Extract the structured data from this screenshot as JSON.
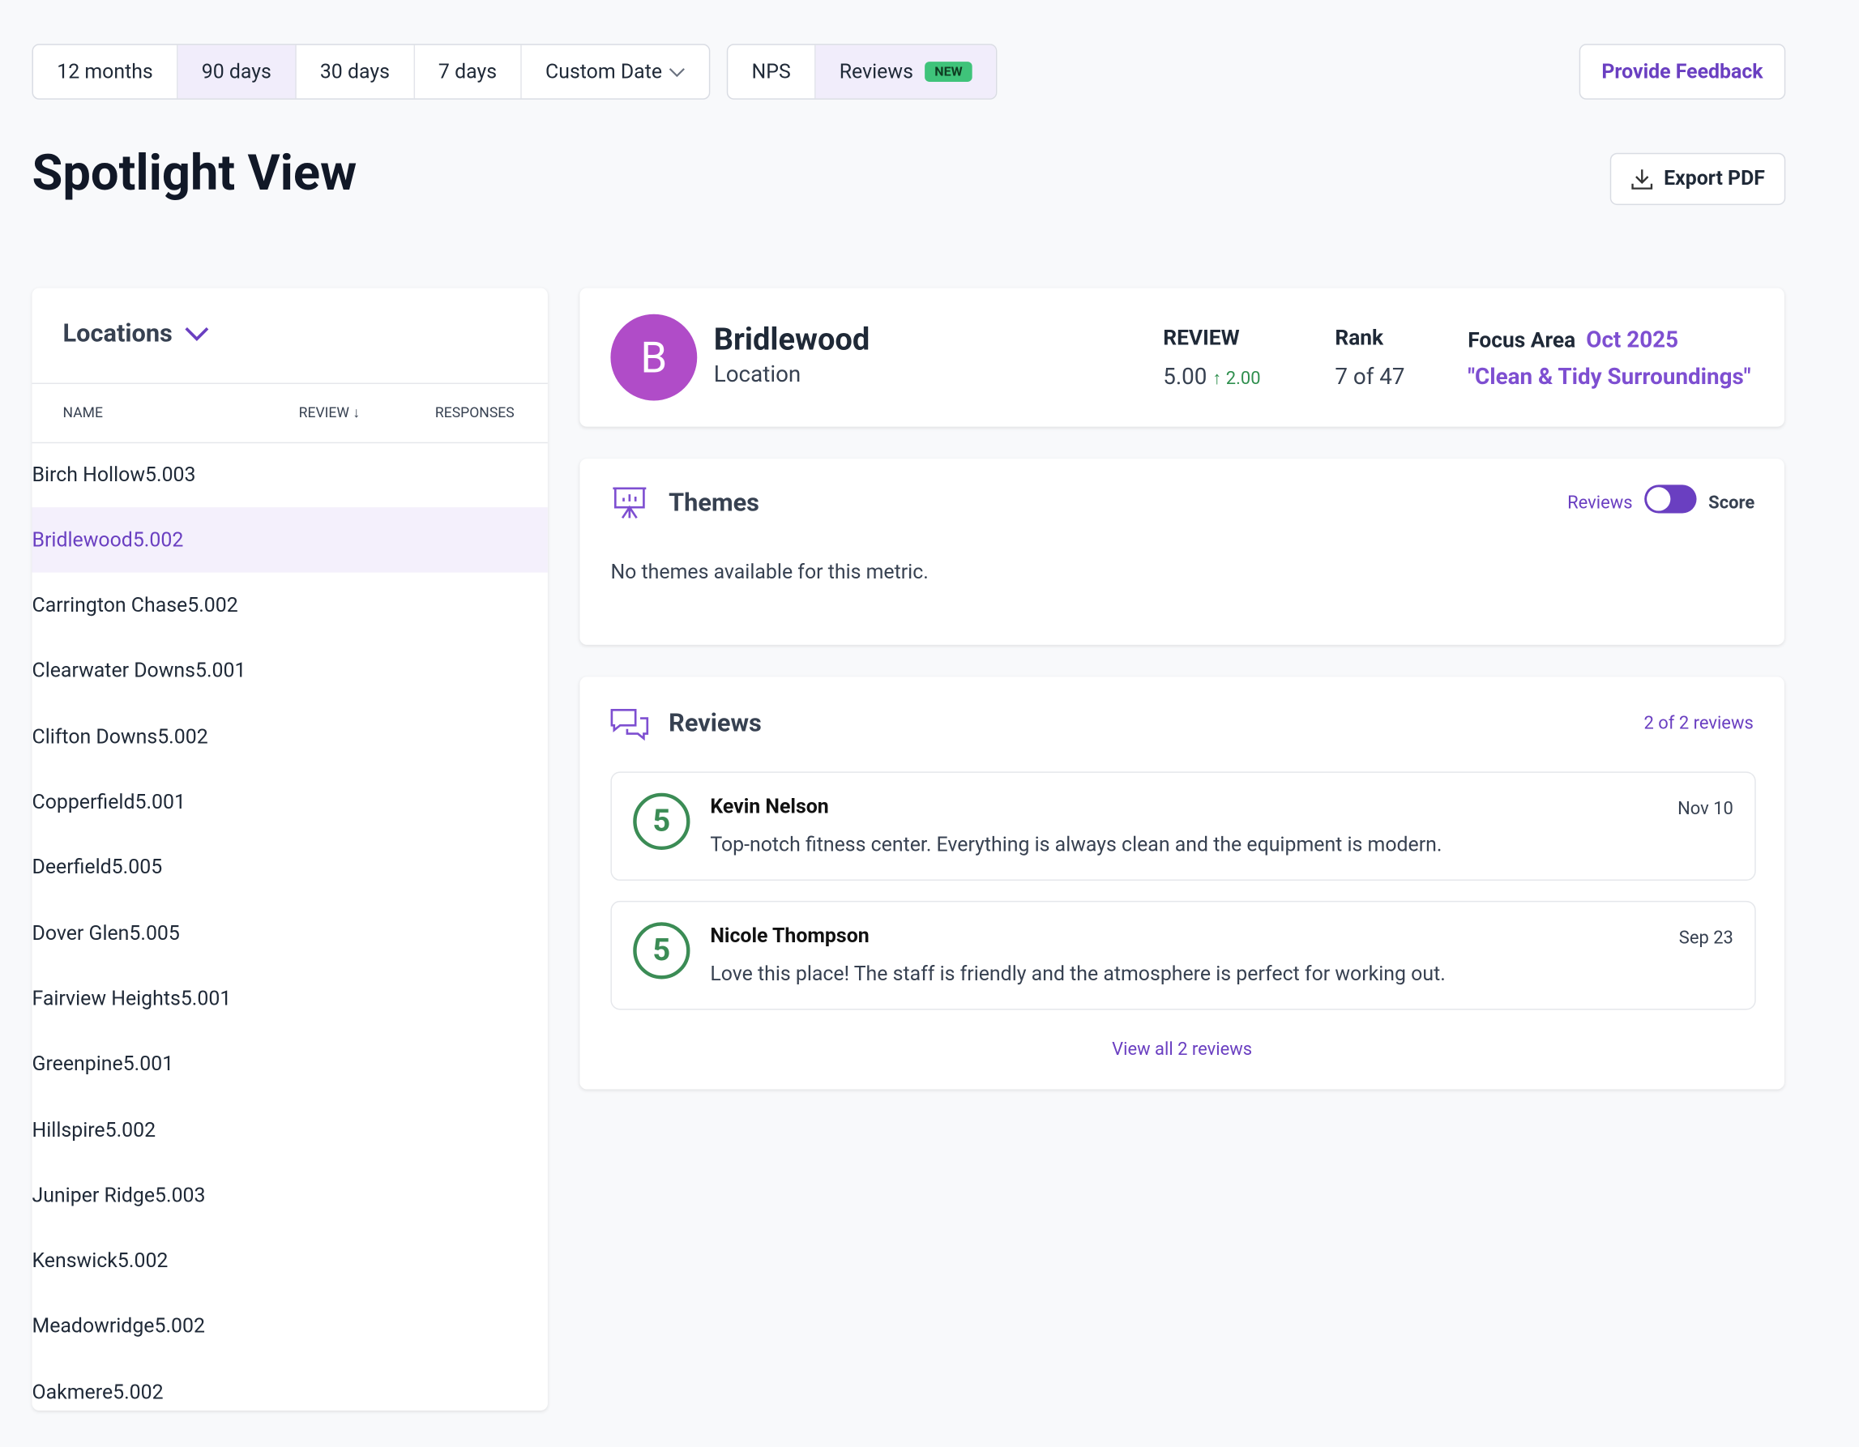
{
  "filters": [
    "12 months",
    "90 days",
    "30 days",
    "7 days",
    "Custom Date"
  ],
  "views": [
    "NPS",
    "Reviews"
  ],
  "new_badge": "NEW",
  "feedback_button": "Provide Feedback",
  "page_title": "Spotlight View",
  "export_button": "Export PDF",
  "locations": {
    "title": "Locations",
    "columns": [
      "NAME",
      "REVIEW",
      "RESPONSES"
    ],
    "rows": [
      [
        "Birch Hollow",
        "5.00",
        3
      ],
      [
        "Bridlewood",
        "5.00",
        2
      ],
      [
        "Carrington Chase",
        "5.00",
        2
      ],
      [
        "Clearwater Downs",
        "5.00",
        1
      ],
      [
        "Clifton Downs",
        "5.00",
        2
      ],
      [
        "Copperfield",
        "5.00",
        1
      ],
      [
        "Deerfield",
        "5.00",
        5
      ],
      [
        "Dover Glen",
        "5.00",
        5
      ],
      [
        "Fairview Heights",
        "5.00",
        1
      ],
      [
        "Greenpine",
        "5.00",
        1
      ],
      [
        "Hillspire",
        "5.00",
        2
      ],
      [
        "Juniper Ridge",
        "5.00",
        3
      ],
      [
        "Kenswick",
        "5.00",
        2
      ],
      [
        "Meadowridge",
        "5.00",
        2
      ],
      [
        "Oakmere",
        "5.00",
        2
      ]
    ]
  },
  "summary": {
    "initial": "B",
    "name": "Bridlewood",
    "subtitle": "Location",
    "review_label": "REVIEW",
    "review": "5.00",
    "change": "2.00",
    "rank_label": "Rank",
    "rank": "7 of 47",
    "focus_label": "Focus Area",
    "focus_date": "Oct 2025",
    "focus_text": "\"Clean & Tidy Surroundings\""
  },
  "themes": {
    "title": "Themes",
    "toggle_left": "Reviews",
    "toggle_right": "Score",
    "empty": "No themes available for this metric."
  },
  "reviews": {
    "title": "Reviews",
    "count": "2 of 2 reviews",
    "items": [
      {
        "score": 5,
        "author": "Kevin Nelson",
        "date": "Nov 10",
        "text": "Top-notch fitness center. Everything is always clean and the equipment is modern."
      },
      {
        "score": 5,
        "author": "Nicole Thompson",
        "date": "Sep 23",
        "text": "Love this place! The staff is friendly and the atmosphere is perfect for working out."
      }
    ],
    "view_all": "View all 2 reviews"
  }
}
